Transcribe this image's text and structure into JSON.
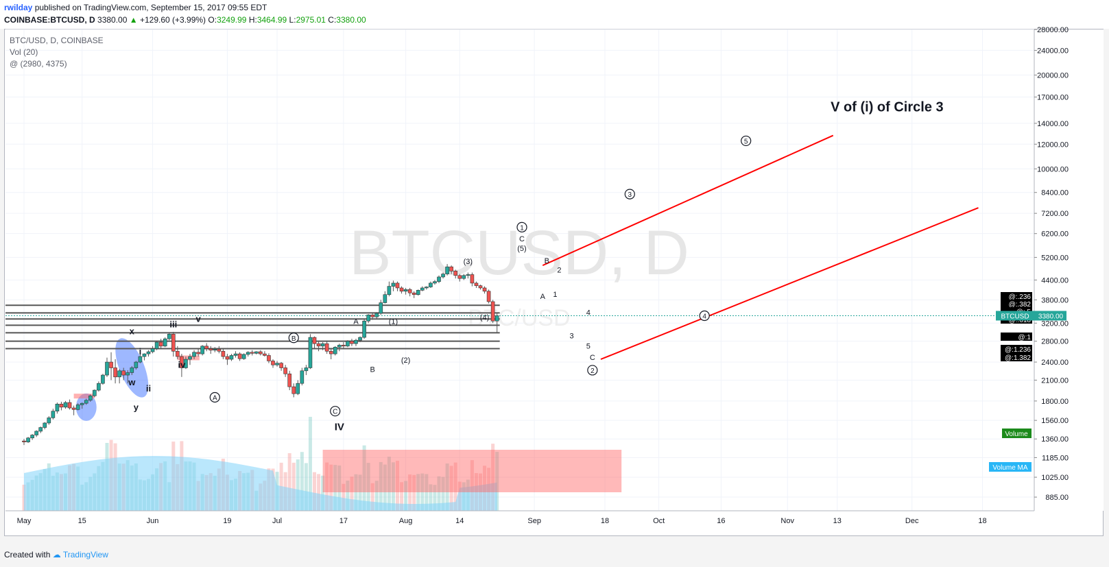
{
  "header": {
    "user": "rwilday",
    "published": "published on TradingView.com, September 15, 2017 09:55 EDT",
    "symbol": "COINBASE:BTCUSD, D",
    "last": "3380.00",
    "change": "+129.60 (+3.99%)",
    "open_label": "O:",
    "open": "3249.99",
    "high_label": "H:",
    "high": "3464.99",
    "low_label": "L:",
    "low": "2975.01",
    "close_label": "C:",
    "close": "3380.00"
  },
  "legend": {
    "line1": "BTC/USD, D, COINBASE",
    "line2": "Vol (20)",
    "line3": "@ (2980, 4375)"
  },
  "watermark": {
    "big": "BTCUSD, D",
    "small": "BTC/USD"
  },
  "footer": {
    "created": "Created with",
    "brand": "TradingView"
  },
  "colors": {
    "up": "#26a69a",
    "down": "#ef5350",
    "trend": "#ff0000",
    "vol_ma": "#81d4fa",
    "box": "#ff6464",
    "ellipse": "#2962ff"
  },
  "chart_data": {
    "type": "candlestick",
    "title": "BTC/USD, D, COINBASE",
    "y_scale": "log",
    "ylim": [
      800,
      28000
    ],
    "y_ticks": [
      "885.00",
      "1025.00",
      "1185.00",
      "1360.00",
      "1560.00",
      "1800.00",
      "2100.00",
      "2400.00",
      "2800.00",
      "3200.00",
      "3800.00",
      "4400.00",
      "5200.00",
      "6200.00",
      "7200.00",
      "8400.00",
      "10000.00",
      "12000.00",
      "14000.00",
      "17000.00",
      "20000.00",
      "24000.00",
      "28000.00"
    ],
    "y_tick_values": [
      885,
      1025,
      1185,
      1360,
      1560,
      1800,
      2100,
      2400,
      2800,
      3200,
      3800,
      4400,
      5200,
      6200,
      7200,
      8400,
      10000,
      12000,
      14000,
      17000,
      20000,
      24000,
      28000
    ],
    "x_ticks": [
      {
        "label": "May",
        "day": 0
      },
      {
        "label": "15",
        "day": 14
      },
      {
        "label": "Jun",
        "day": 31
      },
      {
        "label": "19",
        "day": 49
      },
      {
        "label": "Jul",
        "day": 61
      },
      {
        "label": "17",
        "day": 77
      },
      {
        "label": "Aug",
        "day": 92
      },
      {
        "label": "14",
        "day": 105
      },
      {
        "label": "Sep",
        "day": 123
      },
      {
        "label": "18",
        "day": 140
      },
      {
        "label": "Oct",
        "day": 153
      },
      {
        "label": "16",
        "day": 168
      },
      {
        "label": "Nov",
        "day": 184
      },
      {
        "label": "13",
        "day": 196
      },
      {
        "label": "Dec",
        "day": 214
      },
      {
        "label": "18",
        "day": 231
      }
    ],
    "x_start_date": "2017-05-01",
    "candles": [
      [
        1340,
        1360,
        1300,
        1330
      ],
      [
        1330,
        1380,
        1320,
        1370
      ],
      [
        1370,
        1410,
        1350,
        1400
      ],
      [
        1400,
        1450,
        1380,
        1440
      ],
      [
        1440,
        1490,
        1420,
        1480
      ],
      [
        1480,
        1540,
        1460,
        1530
      ],
      [
        1530,
        1610,
        1510,
        1590
      ],
      [
        1590,
        1700,
        1570,
        1670
      ],
      [
        1670,
        1780,
        1640,
        1760
      ],
      [
        1760,
        1790,
        1680,
        1720
      ],
      [
        1720,
        1800,
        1700,
        1780
      ],
      [
        1780,
        1820,
        1690,
        1710
      ],
      [
        1710,
        1740,
        1620,
        1690
      ],
      [
        1690,
        1770,
        1680,
        1750
      ],
      [
        1750,
        1780,
        1700,
        1770
      ],
      [
        1770,
        1830,
        1750,
        1810
      ],
      [
        1810,
        1890,
        1790,
        1870
      ],
      [
        1870,
        1960,
        1850,
        1950
      ],
      [
        1950,
        2080,
        1930,
        2050
      ],
      [
        2050,
        2200,
        2030,
        2180
      ],
      [
        2180,
        2480,
        2150,
        2400
      ],
      [
        2400,
        2580,
        2100,
        2300
      ],
      [
        2300,
        2450,
        2050,
        2150
      ],
      [
        2150,
        2280,
        2050,
        2250
      ],
      [
        2250,
        2300,
        2100,
        2180
      ],
      [
        2180,
        2260,
        2050,
        2220
      ],
      [
        2220,
        2330,
        2180,
        2300
      ],
      [
        2300,
        2420,
        2270,
        2400
      ],
      [
        2400,
        2540,
        2380,
        2500
      ],
      [
        2500,
        2560,
        2430,
        2550
      ],
      [
        2550,
        2620,
        2500,
        2590
      ],
      [
        2590,
        2700,
        2560,
        2650
      ],
      [
        2650,
        2800,
        2620,
        2780
      ],
      [
        2780,
        2850,
        2650,
        2700
      ],
      [
        2700,
        2880,
        2680,
        2850
      ],
      [
        2850,
        2980,
        2820,
        2950
      ],
      [
        2950,
        3000,
        2500,
        2600
      ],
      [
        2600,
        2700,
        2450,
        2500
      ],
      [
        2500,
        2550,
        2150,
        2300
      ],
      [
        2300,
        2500,
        2280,
        2450
      ],
      [
        2450,
        2550,
        2350,
        2500
      ],
      [
        2500,
        2620,
        2450,
        2580
      ],
      [
        2580,
        2650,
        2500,
        2550
      ],
      [
        2550,
        2720,
        2520,
        2700
      ],
      [
        2700,
        2760,
        2600,
        2650
      ],
      [
        2650,
        2700,
        2550,
        2620
      ],
      [
        2620,
        2680,
        2580,
        2640
      ],
      [
        2640,
        2700,
        2560,
        2600
      ],
      [
        2600,
        2650,
        2450,
        2500
      ],
      [
        2500,
        2550,
        2350,
        2450
      ],
      [
        2450,
        2550,
        2420,
        2520
      ],
      [
        2520,
        2600,
        2480,
        2550
      ],
      [
        2550,
        2580,
        2420,
        2460
      ],
      [
        2460,
        2560,
        2440,
        2540
      ],
      [
        2540,
        2600,
        2500,
        2580
      ],
      [
        2580,
        2620,
        2520,
        2560
      ],
      [
        2560,
        2600,
        2540,
        2590
      ],
      [
        2590,
        2620,
        2520,
        2550
      ],
      [
        2550,
        2600,
        2500,
        2520
      ],
      [
        2520,
        2560,
        2380,
        2420
      ],
      [
        2420,
        2450,
        2300,
        2350
      ],
      [
        2350,
        2420,
        2320,
        2380
      ],
      [
        2380,
        2400,
        2250,
        2300
      ],
      [
        2300,
        2350,
        2150,
        2200
      ],
      [
        2200,
        2250,
        1950,
        2000
      ],
      [
        2000,
        2050,
        1850,
        1900
      ],
      [
        1900,
        2100,
        1880,
        2050
      ],
      [
        2050,
        2300,
        2020,
        2250
      ],
      [
        2250,
        2350,
        2180,
        2300
      ],
      [
        2300,
        2950,
        2280,
        2880
      ],
      [
        2880,
        2900,
        2650,
        2750
      ],
      [
        2750,
        2800,
        2600,
        2700
      ],
      [
        2700,
        2780,
        2620,
        2750
      ],
      [
        2750,
        2800,
        2550,
        2600
      ],
      [
        2600,
        2650,
        2450,
        2550
      ],
      [
        2550,
        2700,
        2520,
        2680
      ],
      [
        2680,
        2750,
        2600,
        2720
      ],
      [
        2720,
        2780,
        2650,
        2700
      ],
      [
        2700,
        2820,
        2680,
        2800
      ],
      [
        2800,
        2850,
        2700,
        2750
      ],
      [
        2750,
        2850,
        2700,
        2820
      ],
      [
        2820,
        2900,
        2780,
        2880
      ],
      [
        2880,
        3300,
        2850,
        3250
      ],
      [
        3250,
        3420,
        3200,
        3400
      ],
      [
        3400,
        3450,
        3280,
        3350
      ],
      [
        3350,
        3470,
        3300,
        3440
      ],
      [
        3440,
        3800,
        3400,
        3720
      ],
      [
        3720,
        4050,
        3700,
        3950
      ],
      [
        3950,
        4350,
        3900,
        4200
      ],
      [
        4200,
        4380,
        4050,
        4300
      ],
      [
        4300,
        4350,
        4050,
        4150
      ],
      [
        4150,
        4200,
        3980,
        4050
      ],
      [
        4050,
        4150,
        3950,
        4100
      ],
      [
        4100,
        4150,
        3900,
        4000
      ],
      [
        4000,
        4050,
        3850,
        3950
      ],
      [
        3950,
        4100,
        3920,
        4080
      ],
      [
        4080,
        4200,
        4050,
        4150
      ],
      [
        4150,
        4200,
        4100,
        4180
      ],
      [
        4180,
        4350,
        4150,
        4300
      ],
      [
        4300,
        4400,
        4250,
        4350
      ],
      [
        4350,
        4550,
        4300,
        4500
      ],
      [
        4500,
        4650,
        4450,
        4600
      ],
      [
        4600,
        4950,
        4550,
        4850
      ],
      [
        4850,
        4900,
        4600,
        4700
      ],
      [
        4700,
        4750,
        4450,
        4550
      ],
      [
        4550,
        4600,
        4350,
        4450
      ],
      [
        4450,
        4600,
        4400,
        4550
      ],
      [
        4550,
        4650,
        4450,
        4580
      ],
      [
        4580,
        4650,
        4200,
        4300
      ],
      [
        4300,
        4350,
        4150,
        4220
      ],
      [
        4220,
        4250,
        4100,
        4150
      ],
      [
        4150,
        4200,
        3980,
        4050
      ],
      [
        4050,
        4100,
        3700,
        3750
      ],
      [
        3750,
        3800,
        3200,
        3250
      ],
      [
        3250,
        3465,
        2975,
        3380
      ]
    ],
    "volume_ma_label": "Volume MA",
    "volume_label": "Volume",
    "horizontal_levels": [
      3650,
      3450,
      3300,
      3150,
      2980,
      2800,
      2650
    ],
    "fib_tags": [
      "@:.236",
      "@:.382",
      "@:.5",
      "@:.618",
      "@:1",
      "@:1.236",
      "@:1.382"
    ],
    "price_tag": {
      "symbol": "BTCUSD",
      "value": "3380.00"
    },
    "trendlines": [
      {
        "from": {
          "day": 125,
          "price": 4900
        },
        "to": {
          "day": 195,
          "price": 12800
        }
      },
      {
        "from": {
          "day": 139,
          "price": 2450
        },
        "to": {
          "day": 230,
          "price": 7500
        }
      }
    ],
    "annotations": [
      {
        "text": "V of (i) of Circle 3",
        "day": 208,
        "price": 15300,
        "bold": true,
        "size": 20
      },
      {
        "text": "x",
        "day": 26,
        "price": 2950,
        "bold": true
      },
      {
        "text": "i",
        "day": 28,
        "price": 2540,
        "bold": true
      },
      {
        "text": "w",
        "day": 26,
        "price": 2020,
        "bold": true
      },
      {
        "text": "ii",
        "day": 30,
        "price": 1930,
        "bold": true
      },
      {
        "text": "y",
        "day": 27,
        "price": 1680,
        "bold": true
      },
      {
        "text": "iii",
        "day": 36,
        "price": 3100,
        "bold": true
      },
      {
        "text": "v",
        "day": 42,
        "price": 3230,
        "bold": true
      },
      {
        "text": "iv",
        "day": 38,
        "price": 2300,
        "bold": true
      },
      {
        "text": "IV",
        "day": 76,
        "price": 1450,
        "bold": true,
        "size": 15
      },
      {
        "text": "A",
        "day": 80,
        "price": 3180
      },
      {
        "text": "(1)",
        "day": 89,
        "price": 3180
      },
      {
        "text": "B",
        "day": 84,
        "price": 2230
      },
      {
        "text": "(2)",
        "day": 92,
        "price": 2390
      },
      {
        "text": "(3)",
        "day": 107,
        "price": 4950
      },
      {
        "text": "(4)",
        "day": 111,
        "price": 3280
      },
      {
        "text": "C",
        "day": 120,
        "price": 5850
      },
      {
        "text": "(5)",
        "day": 120,
        "price": 5450
      },
      {
        "text": "B",
        "day": 126,
        "price": 4980
      },
      {
        "text": "2",
        "day": 129,
        "price": 4650
      },
      {
        "text": "A",
        "day": 125,
        "price": 3830
      },
      {
        "text": "1",
        "day": 128,
        "price": 3880
      },
      {
        "text": "4",
        "day": 136,
        "price": 3400
      },
      {
        "text": "3",
        "day": 132,
        "price": 2860
      },
      {
        "text": "5",
        "day": 136,
        "price": 2650
      },
      {
        "text": "C",
        "day": 137,
        "price": 2440
      }
    ],
    "circled": [
      {
        "text": "B",
        "day": 65,
        "price": 2870
      },
      {
        "text": "A",
        "day": 46,
        "price": 1850
      },
      {
        "text": "C",
        "day": 75,
        "price": 1670
      },
      {
        "text": "1",
        "day": 120,
        "price": 6500
      },
      {
        "text": "3",
        "day": 146,
        "price": 8300
      },
      {
        "text": "5",
        "day": 174,
        "price": 12300
      },
      {
        "text": "4",
        "day": 164,
        "price": 3380
      },
      {
        "text": "2",
        "day": 137,
        "price": 2260
      }
    ]
  }
}
